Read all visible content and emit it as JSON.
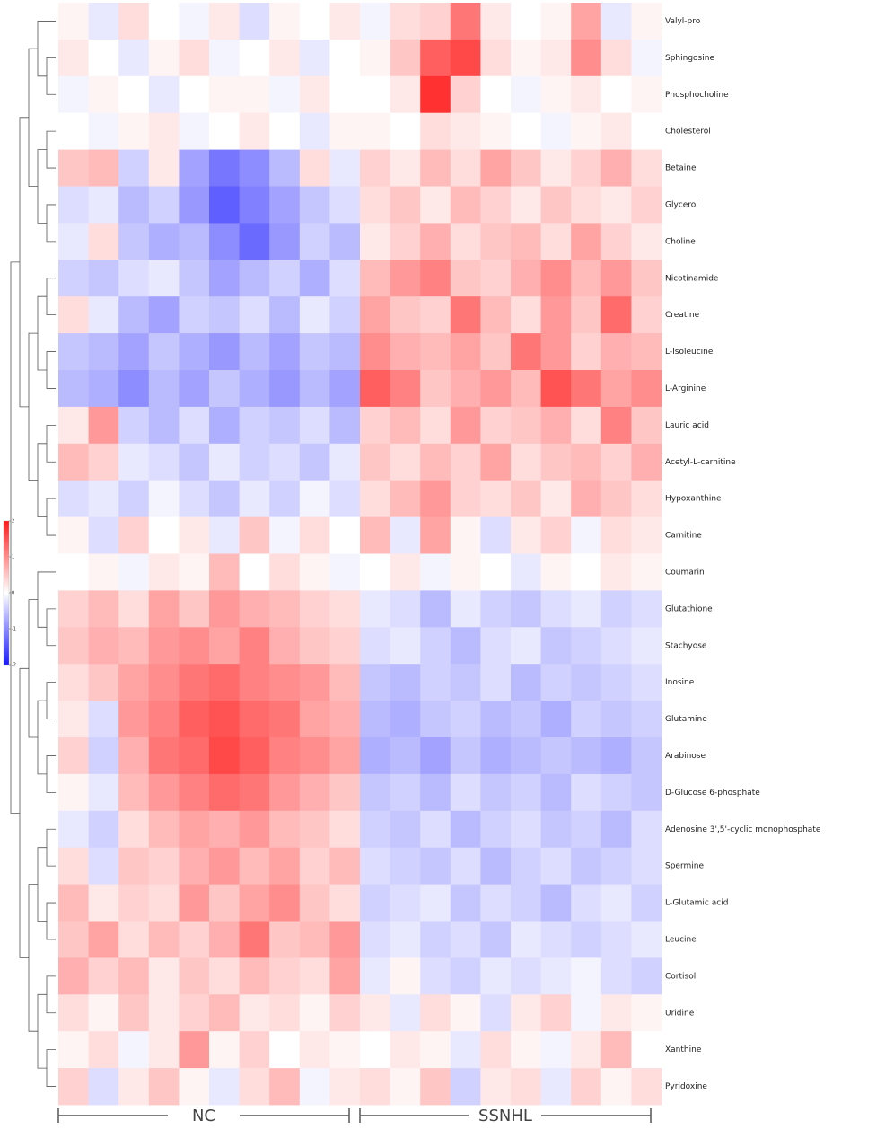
{
  "chart_data": {
    "type": "heatmap",
    "zlim": [
      -2,
      2
    ],
    "zticks": [
      -2,
      -1,
      0,
      1,
      2
    ],
    "low_color": "#1a1aff",
    "mid_color": "#ffffff",
    "high_color": "#ff1a1a",
    "col_groups": [
      "NC",
      "NC",
      "NC",
      "NC",
      "NC",
      "NC",
      "NC",
      "NC",
      "NC",
      "NC",
      "SSNHL",
      "SSNHL",
      "SSNHL",
      "SSNHL",
      "SSNHL",
      "SSNHL",
      "SSNHL",
      "SSNHL",
      "SSNHL",
      "SSNHL"
    ],
    "rows": [
      "Valyl-pro",
      "Sphingosine",
      "Phosphocholine",
      "Cholesterol",
      "Betaine",
      "Glycerol",
      "Choline",
      "Nicotinamide",
      "Creatine",
      "L-Isoleucine",
      "L-Arginine",
      "Lauric acid",
      "Acetyl-L-carnitine",
      "Hypoxanthine",
      "Carnitine",
      "Coumarin",
      "Glutathione",
      "Stachyose",
      "Inosine",
      "Glutamine",
      "Arabinose",
      "D-Glucose 6-phosphate",
      "Adenosine 3',5'-cyclic monophosphate",
      "Spermine",
      "L-Glutamic acid",
      "Leucine",
      "Cortisol",
      "Uridine",
      "Xanthine",
      "Pyridoxine"
    ],
    "values": [
      [
        0.1,
        -0.2,
        0.3,
        0,
        -0.1,
        0.2,
        -0.3,
        0.1,
        0,
        0.2,
        -0.1,
        0.3,
        0.4,
        1.2,
        0.2,
        0,
        0.1,
        0.8,
        -0.2,
        0.1
      ],
      [
        0.2,
        0,
        -0.2,
        0.1,
        0.3,
        -0.1,
        0,
        0.2,
        -0.2,
        0,
        0.1,
        0.5,
        1.4,
        1.6,
        0.3,
        0.1,
        0.2,
        1.0,
        0.3,
        -0.1
      ],
      [
        -0.1,
        0.1,
        0,
        -0.2,
        0,
        0.1,
        0.1,
        -0.1,
        0.2,
        0,
        0,
        0.2,
        1.8,
        0.4,
        0,
        -0.1,
        0.1,
        0.2,
        0,
        0.1
      ],
      [
        0,
        -0.1,
        0.1,
        0.2,
        -0.1,
        0,
        0.2,
        0,
        -0.2,
        0.1,
        0.1,
        0,
        0.3,
        0.2,
        0.1,
        0,
        -0.1,
        0.1,
        0.2,
        0
      ],
      [
        0.5,
        0.6,
        -0.4,
        0.2,
        -0.8,
        -1.2,
        -1.0,
        -0.6,
        0.3,
        -0.2,
        0.4,
        0.2,
        0.6,
        0.3,
        0.8,
        0.5,
        0.2,
        0.4,
        0.7,
        0.3
      ],
      [
        -0.3,
        -0.2,
        -0.6,
        -0.4,
        -0.9,
        -1.4,
        -1.1,
        -0.8,
        -0.5,
        -0.3,
        0.3,
        0.5,
        0.2,
        0.6,
        0.4,
        0.2,
        0.5,
        0.3,
        0.2,
        0.4
      ],
      [
        -0.2,
        0.3,
        -0.5,
        -0.7,
        -0.6,
        -1.0,
        -1.3,
        -0.9,
        -0.4,
        -0.6,
        0.2,
        0.4,
        0.7,
        0.3,
        0.5,
        0.6,
        0.3,
        0.8,
        0.4,
        0.2
      ],
      [
        -0.4,
        -0.5,
        -0.3,
        -0.2,
        -0.5,
        -0.8,
        -0.6,
        -0.4,
        -0.7,
        -0.3,
        0.6,
        0.9,
        1.1,
        0.5,
        0.4,
        0.7,
        1.0,
        0.6,
        0.9,
        0.5
      ],
      [
        0.3,
        -0.2,
        -0.6,
        -0.8,
        -0.4,
        -0.5,
        -0.3,
        -0.6,
        -0.2,
        -0.4,
        0.8,
        0.5,
        0.4,
        1.2,
        0.6,
        0.3,
        0.9,
        0.5,
        1.3,
        0.4
      ],
      [
        -0.5,
        -0.6,
        -0.8,
        -0.5,
        -0.7,
        -0.9,
        -0.6,
        -0.8,
        -0.5,
        -0.6,
        1.0,
        0.7,
        0.6,
        0.8,
        0.5,
        1.2,
        0.9,
        0.4,
        0.7,
        0.6
      ],
      [
        -0.6,
        -0.7,
        -1.0,
        -0.6,
        -0.8,
        -0.5,
        -0.7,
        -0.9,
        -0.6,
        -0.8,
        1.4,
        1.1,
        0.5,
        0.7,
        0.9,
        0.6,
        1.5,
        1.2,
        0.8,
        1.0
      ],
      [
        0.2,
        0.9,
        -0.4,
        -0.6,
        -0.3,
        -0.7,
        -0.4,
        -0.5,
        -0.3,
        -0.6,
        0.4,
        0.6,
        0.3,
        0.9,
        0.4,
        0.5,
        0.7,
        0.3,
        1.1,
        0.5
      ],
      [
        0.6,
        0.4,
        -0.2,
        -0.3,
        -0.5,
        -0.2,
        -0.4,
        -0.3,
        -0.5,
        -0.2,
        0.5,
        0.3,
        0.6,
        0.4,
        0.8,
        0.3,
        0.5,
        0.6,
        0.4,
        0.7
      ],
      [
        -0.3,
        -0.2,
        -0.4,
        -0.1,
        -0.3,
        -0.5,
        -0.2,
        -0.4,
        -0.1,
        -0.3,
        0.3,
        0.6,
        0.9,
        0.4,
        0.3,
        0.5,
        0.2,
        0.7,
        0.5,
        0.3
      ],
      [
        0.1,
        -0.3,
        0.4,
        0,
        0.2,
        -0.2,
        0.5,
        -0.1,
        0.3,
        0,
        0.6,
        -0.2,
        0.8,
        0.1,
        -0.3,
        0.2,
        0.4,
        -0.1,
        0.3,
        0.2
      ],
      [
        0,
        0.1,
        -0.1,
        0.2,
        0.1,
        0.6,
        0,
        0.3,
        0.1,
        -0.1,
        0,
        0.2,
        -0.1,
        0.1,
        0,
        -0.2,
        0.1,
        0,
        0.2,
        0.1
      ],
      [
        0.4,
        0.6,
        0.3,
        0.8,
        0.5,
        0.9,
        0.7,
        0.6,
        0.4,
        0.3,
        -0.2,
        -0.3,
        -0.6,
        -0.2,
        -0.4,
        -0.5,
        -0.3,
        -0.2,
        -0.4,
        -0.3
      ],
      [
        0.5,
        0.7,
        0.6,
        0.9,
        1.0,
        0.8,
        1.1,
        0.7,
        0.5,
        0.4,
        -0.3,
        -0.2,
        -0.4,
        -0.6,
        -0.3,
        -0.2,
        -0.5,
        -0.4,
        -0.3,
        -0.2
      ],
      [
        0.3,
        0.5,
        0.8,
        1.0,
        1.2,
        1.3,
        1.1,
        1.0,
        0.9,
        0.6,
        -0.5,
        -0.6,
        -0.4,
        -0.5,
        -0.3,
        -0.6,
        -0.4,
        -0.5,
        -0.4,
        -0.3
      ],
      [
        0.2,
        -0.3,
        0.9,
        1.1,
        1.4,
        1.5,
        1.3,
        1.2,
        0.8,
        0.7,
        -0.6,
        -0.7,
        -0.5,
        -0.4,
        -0.6,
        -0.5,
        -0.7,
        -0.4,
        -0.5,
        -0.4
      ],
      [
        0.4,
        -0.4,
        0.7,
        1.2,
        1.3,
        1.6,
        1.4,
        1.1,
        1.0,
        0.8,
        -0.7,
        -0.6,
        -0.8,
        -0.5,
        -0.7,
        -0.6,
        -0.5,
        -0.6,
        -0.7,
        -0.5
      ],
      [
        0.1,
        -0.2,
        0.6,
        0.9,
        1.1,
        1.3,
        1.2,
        0.9,
        0.7,
        0.5,
        -0.5,
        -0.4,
        -0.6,
        -0.3,
        -0.5,
        -0.4,
        -0.6,
        -0.3,
        -0.4,
        -0.5
      ],
      [
        -0.2,
        -0.4,
        0.3,
        0.6,
        0.8,
        0.7,
        0.9,
        0.6,
        0.5,
        0.3,
        -0.4,
        -0.5,
        -0.3,
        -0.6,
        -0.4,
        -0.3,
        -0.5,
        -0.4,
        -0.6,
        -0.3
      ],
      [
        0.3,
        -0.3,
        0.5,
        0.4,
        0.7,
        0.9,
        0.6,
        0.8,
        0.4,
        0.6,
        -0.3,
        -0.4,
        -0.5,
        -0.3,
        -0.6,
        -0.4,
        -0.3,
        -0.5,
        -0.4,
        -0.3
      ],
      [
        0.6,
        0.2,
        0.4,
        0.3,
        0.9,
        0.5,
        0.8,
        1.0,
        0.5,
        0.3,
        -0.4,
        -0.3,
        -0.2,
        -0.5,
        -0.3,
        -0.4,
        -0.6,
        -0.3,
        -0.2,
        -0.4
      ],
      [
        0.5,
        0.8,
        0.3,
        0.6,
        0.4,
        0.7,
        1.2,
        0.5,
        0.6,
        0.9,
        -0.3,
        -0.2,
        -0.4,
        -0.3,
        -0.5,
        -0.2,
        -0.3,
        -0.4,
        -0.3,
        -0.2
      ],
      [
        0.7,
        0.4,
        0.6,
        0.2,
        0.5,
        0.3,
        0.6,
        0.4,
        0.3,
        0.8,
        -0.2,
        0.1,
        -0.3,
        -0.4,
        -0.2,
        -0.3,
        -0.2,
        -0.1,
        -0.3,
        -0.4
      ],
      [
        0.3,
        0.1,
        0.5,
        0.2,
        0.4,
        0.6,
        0.2,
        0.3,
        0.1,
        0.4,
        0.2,
        -0.2,
        0.3,
        0.1,
        -0.3,
        0.2,
        0.4,
        -0.1,
        0.2,
        0.1
      ],
      [
        0.1,
        0.3,
        -0.1,
        0.2,
        0.9,
        0.1,
        0.4,
        0,
        0.2,
        0.1,
        0,
        0.2,
        0.1,
        -0.2,
        0.3,
        0.1,
        -0.1,
        0.2,
        0.6,
        0
      ],
      [
        0.4,
        -0.3,
        0.2,
        0.5,
        0.1,
        -0.2,
        0.3,
        0.6,
        -0.1,
        0.2,
        0.3,
        0.1,
        0.5,
        -0.4,
        0.2,
        0.3,
        -0.2,
        0.4,
        0.1,
        0.3
      ]
    ]
  }
}
